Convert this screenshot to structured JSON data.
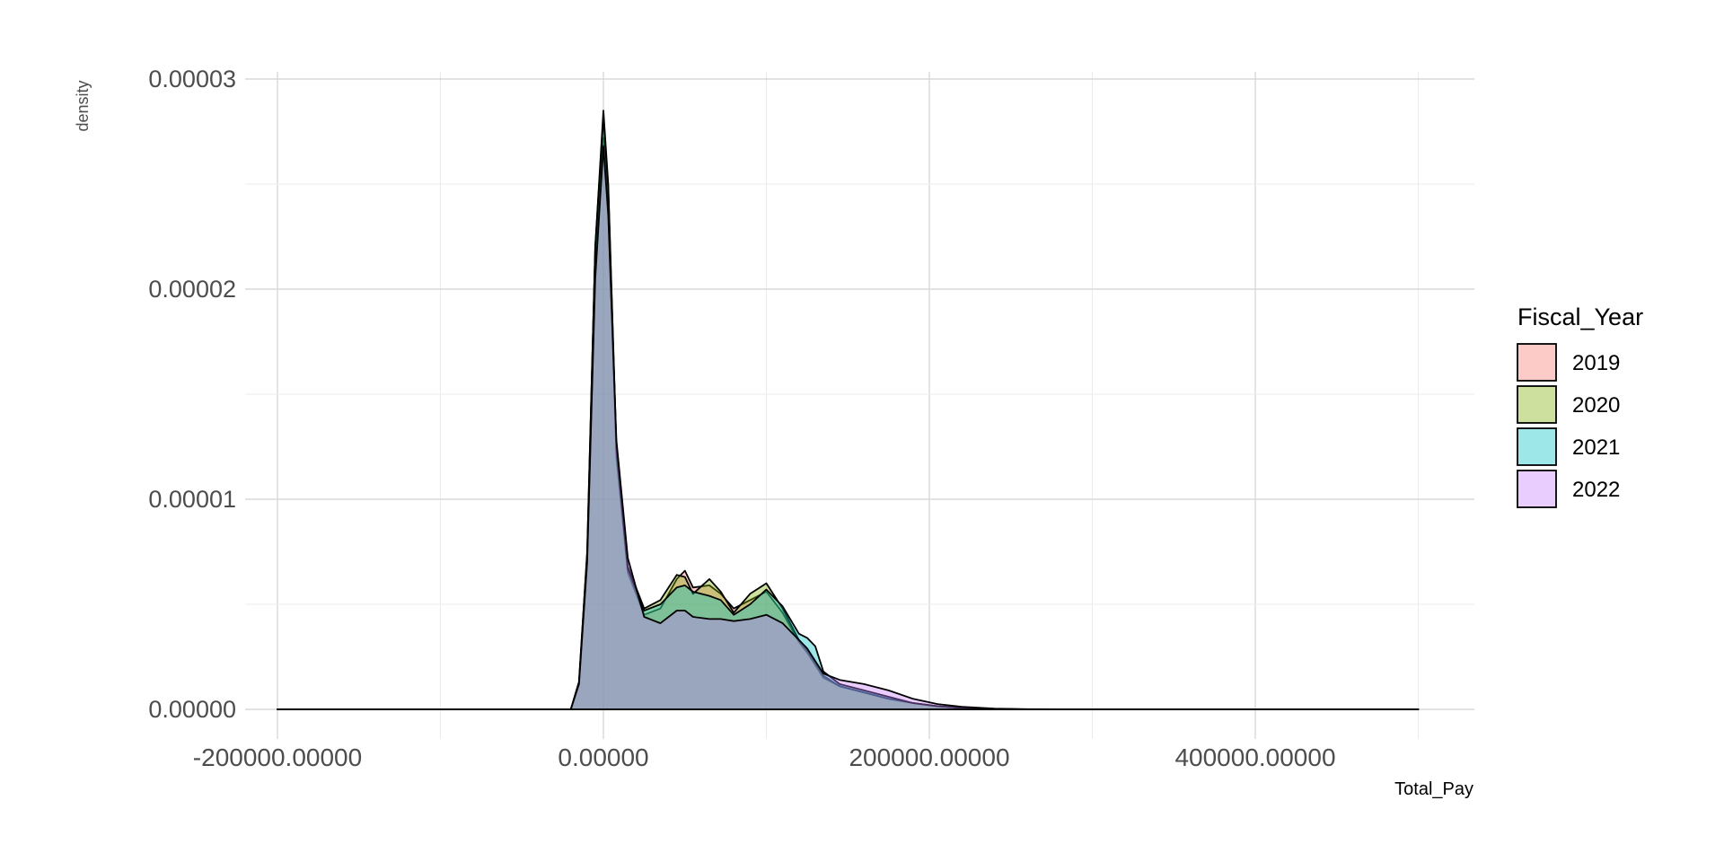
{
  "chart_data": {
    "type": "area",
    "xlabel": "Total_Pay",
    "ylabel": "density",
    "xlim": [
      -200000,
      500000
    ],
    "ylim": [
      0,
      3e-05
    ],
    "x_ticks": [
      -200000,
      0,
      200000,
      400000
    ],
    "x_tick_labels": [
      "-200000.00000",
      "0.00000",
      "200000.00000",
      "400000.00000"
    ],
    "y_ticks": [
      0,
      1e-05,
      2e-05,
      3e-05
    ],
    "y_tick_labels": [
      "0.00000",
      "0.00001",
      "0.00002",
      "0.00003"
    ],
    "grid": true,
    "legend": {
      "title": "Fiscal_Year",
      "position": "right",
      "entries": [
        "2019",
        "2020",
        "2021",
        "2022"
      ]
    },
    "x": [
      -200000,
      -100000,
      -20000,
      -15000,
      -10000,
      -5000,
      0,
      3000,
      8000,
      15000,
      25000,
      35000,
      45000,
      50000,
      55000,
      65000,
      72000,
      80000,
      90000,
      100000,
      110000,
      120000,
      125000,
      130000,
      135000,
      145000,
      160000,
      175000,
      190000,
      205000,
      220000,
      240000,
      260000,
      300000,
      400000,
      500000
    ],
    "series": [
      {
        "name": "2019",
        "color": "#F8766D",
        "values": [
          0,
          0,
          0,
          1.2e-06,
          7e-06,
          2.1e-05,
          2.72e-05,
          2.4e-05,
          1.2e-05,
          6.5e-06,
          4.5e-06,
          4.8e-06,
          6.2e-06,
          6.6e-06,
          5.8e-06,
          5.9e-06,
          5.5e-06,
          4.8e-06,
          5.2e-06,
          5.6e-06,
          4.6e-06,
          3.2e-06,
          2.7e-06,
          2.1e-06,
          1.5e-06,
          1.1e-06,
          8e-07,
          5e-07,
          3e-07,
          1.5e-07,
          7e-08,
          2e-08,
          0,
          0,
          0,
          0
        ]
      },
      {
        "name": "2020",
        "color": "#7CAE00",
        "values": [
          0,
          0,
          0,
          1.3e-06,
          7.5e-06,
          2.2e-05,
          2.85e-05,
          2.5e-05,
          1.25e-05,
          6.8e-06,
          4.8e-06,
          5.2e-06,
          6.4e-06,
          6.3e-06,
          5.5e-06,
          6.2e-06,
          5.6e-06,
          4.6e-06,
          5.5e-06,
          6e-06,
          4.8e-06,
          3.3e-06,
          2.8e-06,
          2.2e-06,
          1.6e-06,
          1.1e-06,
          8e-07,
          5e-07,
          3e-07,
          1.5e-07,
          7e-08,
          2e-08,
          0,
          0,
          0,
          0
        ]
      },
      {
        "name": "2021",
        "color": "#00BFC4",
        "values": [
          0,
          0,
          0,
          1.3e-06,
          7.4e-06,
          2.2e-05,
          2.82e-05,
          2.48e-05,
          1.24e-05,
          6.7e-06,
          4.7e-06,
          5e-06,
          5.8e-06,
          5.9e-06,
          5.6e-06,
          5.4e-06,
          5.2e-06,
          4.5e-06,
          5e-06,
          5.7e-06,
          4.9e-06,
          3.6e-06,
          3.4e-06,
          3e-06,
          1.8e-06,
          1.2e-06,
          9e-07,
          6e-07,
          3e-07,
          1.5e-07,
          7e-08,
          2e-08,
          0,
          0,
          0,
          0
        ]
      },
      {
        "name": "2022",
        "color": "#C77CFF",
        "values": [
          0,
          0,
          0,
          1.2e-06,
          7e-06,
          2.05e-05,
          2.68e-05,
          2.35e-05,
          1.28e-05,
          7.2e-06,
          4.4e-06,
          4.1e-06,
          4.7e-06,
          4.7e-06,
          4.4e-06,
          4.3e-06,
          4.3e-06,
          4.2e-06,
          4.3e-06,
          4.5e-06,
          4.1e-06,
          3.3e-06,
          2.9e-06,
          2.3e-06,
          1.7e-06,
          1.4e-06,
          1.2e-06,
          9e-07,
          5e-07,
          2.5e-07,
          1.2e-07,
          4e-08,
          1e-08,
          0,
          0,
          0
        ]
      }
    ]
  }
}
